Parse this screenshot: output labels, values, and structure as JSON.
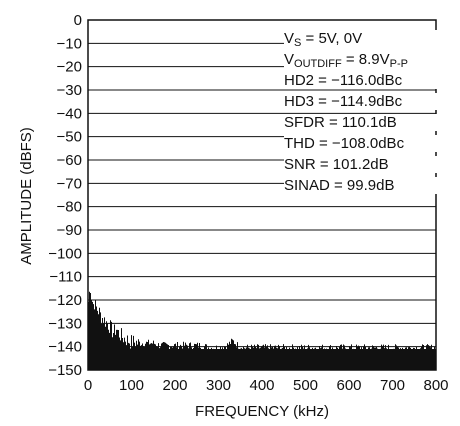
{
  "chart_data": {
    "type": "bar",
    "xlabel": "FREQUENCY (kHz)",
    "ylabel": "AMPLITUDE (dBFS)",
    "xlim": [
      0,
      800
    ],
    "ylim": [
      -150,
      0
    ],
    "x_ticks": [
      "0",
      "100",
      "200",
      "300",
      "400",
      "500",
      "600",
      "700",
      "800"
    ],
    "y_ticks": [
      "0",
      "−10",
      "−20",
      "−30",
      "−40",
      "−50",
      "−60",
      "−70",
      "−80",
      "−90",
      "−100",
      "−110",
      "−120",
      "−130",
      "−140",
      "−150"
    ],
    "grid": "horizontal",
    "annotations": [
      {
        "main": "V",
        "sub": "S",
        "rest": " = 5V, 0V"
      },
      {
        "main": "V",
        "sub": "OUTDIFF",
        "rest": " = 8.9V",
        "sub2": "P-P"
      },
      {
        "main": "HD2 = −116.0dBc"
      },
      {
        "main": "HD3 = −114.9dBc"
      },
      {
        "main": "SFDR = 110.1dB"
      },
      {
        "main": "THD = −108.0dBc"
      },
      {
        "main": "SNR = 101.2dB"
      },
      {
        "main": "SINAD = 99.9dB"
      }
    ],
    "spectrum": {
      "freq_khz": [
        0,
        2,
        4,
        6,
        8,
        10,
        12,
        15,
        18,
        22,
        26,
        30,
        35,
        40,
        45,
        50,
        55,
        60,
        65,
        70,
        75,
        80,
        90,
        100,
        110,
        120,
        135,
        150,
        165,
        180,
        200,
        220,
        240,
        260,
        280,
        300,
        320,
        333,
        345,
        360,
        380,
        400,
        450,
        500,
        550,
        600,
        650,
        700,
        750,
        800
      ],
      "amplitude_dbfs": [
        -122,
        -118,
        -115,
        -113,
        -117,
        -119,
        -121,
        -120,
        -122,
        -123,
        -124,
        -126,
        -127,
        -128,
        -129,
        -130,
        -132,
        -133,
        -131,
        -133,
        -134,
        -135,
        -136,
        -137,
        -137,
        -138,
        -138,
        -138,
        -139,
        -139,
        -139,
        -139,
        -139,
        -139,
        -140,
        -140,
        -139,
        -137,
        -139,
        -140,
        -140,
        -140,
        -140,
        -140,
        -140,
        -140,
        -140,
        -140,
        -140,
        -140
      ],
      "noise_floor_dbfs": -141,
      "color": "#111111"
    }
  }
}
